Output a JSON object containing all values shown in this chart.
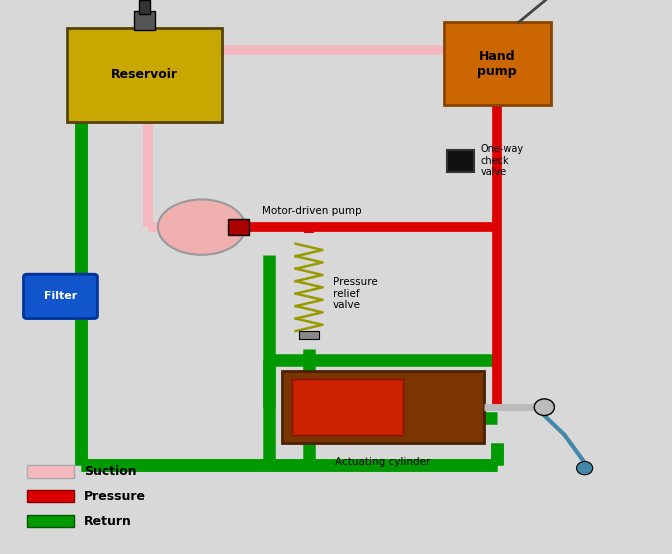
{
  "bg_color": "#d8d8d8",
  "suction_color": "#f5b8c0",
  "pressure_color": "#dd0000",
  "return_color": "#009900",
  "reservoir_color": "#c8a800",
  "hand_pump_color": "#cc6600",
  "filter_color": "#1155cc",
  "pipe_lw": 7,
  "return_lw": 9,
  "reservoir_label": "Reservoir",
  "hand_pump_label": "Hand\npump",
  "filter_label": "Filter",
  "motor_pump_label": "Motor-driven pump",
  "pressure_relief_label": "Pressure\nrelief\nvalve",
  "one_way_label": "One-way\ncheck\nvalve",
  "actuating_label": "Actuating cylinder",
  "legend_suction": "Suction",
  "legend_pressure": "Pressure",
  "legend_return": "Return",
  "figw": 6.72,
  "figh": 5.54,
  "dpi": 100
}
